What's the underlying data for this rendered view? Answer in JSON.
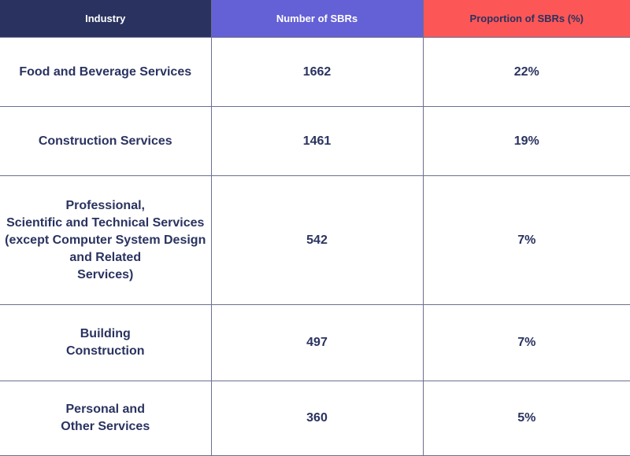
{
  "table": {
    "headers": [
      "Industry",
      "Number of SBRs",
      "Proportion of SBRs (%)"
    ],
    "colors": {
      "header1": "#2a3360",
      "header2": "#6460d6",
      "header3": "#fd5656",
      "text": "#2a3360"
    },
    "rows": [
      {
        "industry": "Food and Beverage Services",
        "count": "1662",
        "proportion": "22%"
      },
      {
        "industry": "Construction Services",
        "count": "1461",
        "proportion": "19%"
      },
      {
        "industry": "Professional,\nScientific and Technical Services\n(except Computer System Design\nand Related\nServices)",
        "count": "542",
        "proportion": "7%"
      },
      {
        "industry": "Building\nConstruction",
        "count": "497",
        "proportion": "7%"
      },
      {
        "industry": "Personal and\nOther Services",
        "count": "360",
        "proportion": "5%"
      }
    ]
  }
}
